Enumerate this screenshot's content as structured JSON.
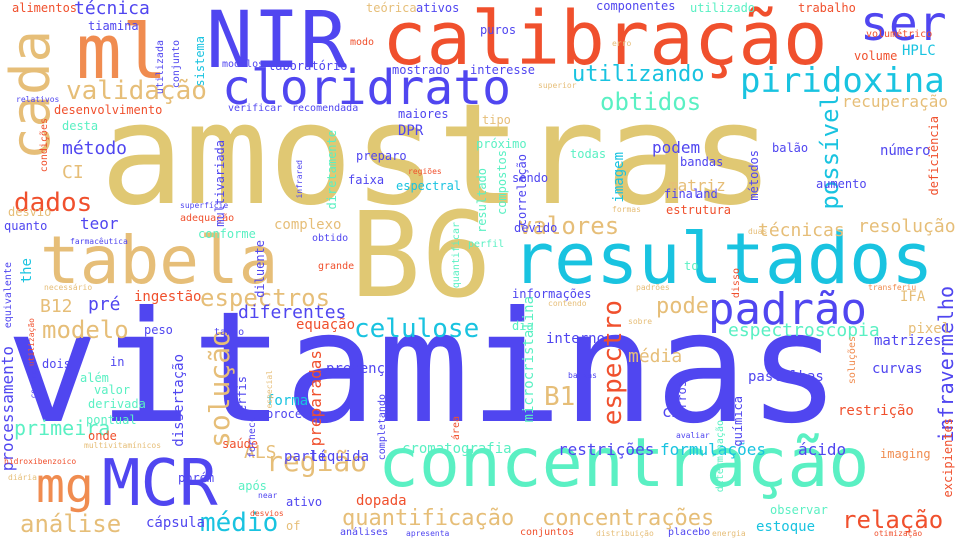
{
  "palette": {
    "gold": "#e0c873",
    "blue": "#5046f0",
    "red": "#f0502d",
    "cyan": "#19c3e0",
    "mint": "#5af0c3",
    "orange": "#f08c50",
    "sand": "#e6be78"
  },
  "words": {
    "w_amostras": "amostras",
    "w_vitaminas": "vitaminas",
    "w_b6": "B6",
    "w_calibracao": "calibração",
    "w_nir": "NIR",
    "w_ml": "ml",
    "w_cada": "cada",
    "w_tabela": "tabela",
    "w_resultados": "resultados",
    "w_cloridrato": "cloridrato",
    "w_concentracao": "concentração",
    "w_mcr": "MCR",
    "w_mg": "mg",
    "w_ser": "ser",
    "w_piridoxina": "piridoxina",
    "w_padrao": "padrão",
    "w_validacao": "validação",
    "w_utilizando": "utilizando",
    "w_obtidos": "obtidos",
    "w_dados": "dados",
    "w_espectros": "espectros",
    "w_modelo": "modelo",
    "w_celulose": "celulose",
    "w_solucao": "solução",
    "w_valores": "valores",
    "w_regiao": "região",
    "w_analise": "análise",
    "w_medio": "médio",
    "w_quantificacao": "quantificação",
    "w_concentracoes": "concentrações",
    "w_relacao": "relação",
    "w_espectroscopia": "espectroscopia",
    "w_espectro": "espectro",
    "w_pode": "pode",
    "w_b1": "B1",
    "w_b12": "B12",
    "w_tecnica": "técnica",
    "w_possivel": "possível",
    "w_recuperacao": "recuperação",
    "w_resolucao": "resolução",
    "w_tecnicas": "técnicas",
    "w_infravermelho": "infravermelho",
    "w_metodo": "método",
    "w_ci": "CI",
    "w_teor": "teor",
    "w_diferentes": "diferentes",
    "w_pre": "pré",
    "w_media": "média",
    "w_matriz": "matriz",
    "w_podem": "podem",
    "w_imagem": "imagem",
    "w_microcristalina": "microcristalina",
    "w_processamento": "processamento",
    "w_primeira": "primeira",
    "w_cromatografia": "cromatografia",
    "w_restricoes": "restrições",
    "w_formulacoes": "formulações",
    "w_acido": "ácido",
    "w_als": "ALS",
    "w_parte": "parte",
    "w_liquida": "líquida",
    "w_capsula": "cápsula",
    "w_estoque": "estoque",
    "w_hplc": "HPLC",
    "w_ifa": "IFA",
    "w_pixel": "pixel",
    "w_matrizes": "matrizes",
    "w_curvas": "curvas",
    "w_pastilhas": "pastilhas",
    "w_restricao": "restrição",
    "w_excipientes": "excipientes",
    "w_numero": "número",
    "w_cm": "cm",
    "w_dopada": "dopada",
    "w_ingestao": "ingestão",
    "w_informacoes": "informações",
    "w_interno": "interno",
    "w_presenca": "presença",
    "w_forma": "forma",
    "w_processo": "processo",
    "w_preparadas": "preparadas",
    "w_dissertacao": "dissertação",
    "w_equacao": "equação",
    "w_complexo": "complexo",
    "w_alimentos": "alimentos",
    "w_tiamina": "tiamina",
    "w_componentes": "componentes",
    "w_trabalho": "trabalho",
    "w_teorica": "teórica",
    "w_ativos": "ativos",
    "w_puros": "puros",
    "w_laboratorio": "laboratório",
    "w_mostrado": "mostrado",
    "w_interesse": "interesse",
    "w_desenvolvimento": "desenvolvimento",
    "w_verificar": "verificar",
    "w_recomendada": "recomendada",
    "w_dpr": "DPR",
    "w_tipo": "tipo",
    "w_maiores": "maiores",
    "w_sistema": "sistema",
    "w_conjunto": "conjunto",
    "w_utilizada": "utilizada",
    "w_modelos": "modelos",
    "w_relativos": "relativos",
    "w_condicoes": "condições",
    "w_desvio": "desvio",
    "w_quanto": "quanto",
    "w_farmaceutica": "farmacêutica",
    "w_adequacao": "adequação",
    "w_conforme": "conforme",
    "w_multivariada": "multivariada",
    "w_superficie": "superfície",
    "w_faixa": "faixa",
    "w_espectral": "espectral",
    "w_proximo": "próximo",
    "w_correlacao": "correlação",
    "w_sendo": "sendo",
    "w_compostos": "compostos",
    "w_resultado": "resultado",
    "w_todas": "todas",
    "w_bandas": "bandas",
    "w_metodos": "métodos",
    "w_balao": "balão",
    "w_aumento": "aumento",
    "w_deficiencia": "deficiência",
    "w_estrutura": "estrutura",
    "w_final": "final",
    "w_and": "and",
    "w_devido": "devido",
    "w_regioes": "regiões",
    "w_preparo": "preparo",
    "w_diretamente": "diretamente",
    "w_infrared": "infrared",
    "w_diluente": "diluente",
    "w_obtido": "obtido",
    "w_grande": "grande",
    "w_the": "the",
    "w_equivalente": "equivalente",
    "w_peso": "peso",
    "w_tanto": "tanto",
    "w_dois": "dois",
    "w_alem": "além",
    "w_valor": "valor",
    "w_derivada": "derivada",
    "w_pontual": "pontual",
    "w_onde": "onde",
    "w_in": "in",
    "w_perfis": "perfis",
    "w_completando": "completando",
    "w_area": "área",
    "w_erros": "erros",
    "w_quimica": "química",
    "w_imaging": "imaging",
    "w_observar": "observar",
    "w_porem": "porém",
    "w_apos": "após",
    "w_ativo": "ativo",
    "w_of": "of",
    "w_saude": "saúde",
    "w_fornecer": "fornecer",
    "w_analises": "análises",
    "w_conjuntos": "conjuntos",
    "w_placebo": "placebo",
    "w_otimizacao": "otimização",
    "w_energia": "energia",
    "w_distribuicao": "distribuição",
    "w_avaliar": "avaliar",
    "w_multivitaminicos": "multivitamínicos",
    "w_hidroxibenzoico": "hidroxibenzoico",
    "w_diaria": "diária",
    "w_utilizado": "utilizado",
    "w_volume": "volume",
    "w_volumetrico": "volumétrico",
    "w_quantificar": "quantificar",
    "w_perfil": "perfil",
    "w_dia": "dia",
    "w_modo": "modo",
    "w_desta": "desta",
    "w_lacobj": "to",
    "w_necessario": "necessário",
    "w_utilizacao": "utilização",
    "w_controle": "controle",
    "w_near": "near",
    "w_desvios": "desvios",
    "w_apresenta": "apresenta",
    "w_baixas": "baixas",
    "w_solucoes": "soluções",
    "w_transferiu": "transferiu",
    "w_especial": "especial",
    "w_disso": "disso",
    "w_erro": "erro",
    "w_superior": "superior",
    "w_padroes": "padrões",
    "w_contendo": "contendo",
    "w_sobre": "sobre",
    "w_determinacao": "determinação",
    "w_formas": "formas",
    "w_duas": "duas"
  }
}
